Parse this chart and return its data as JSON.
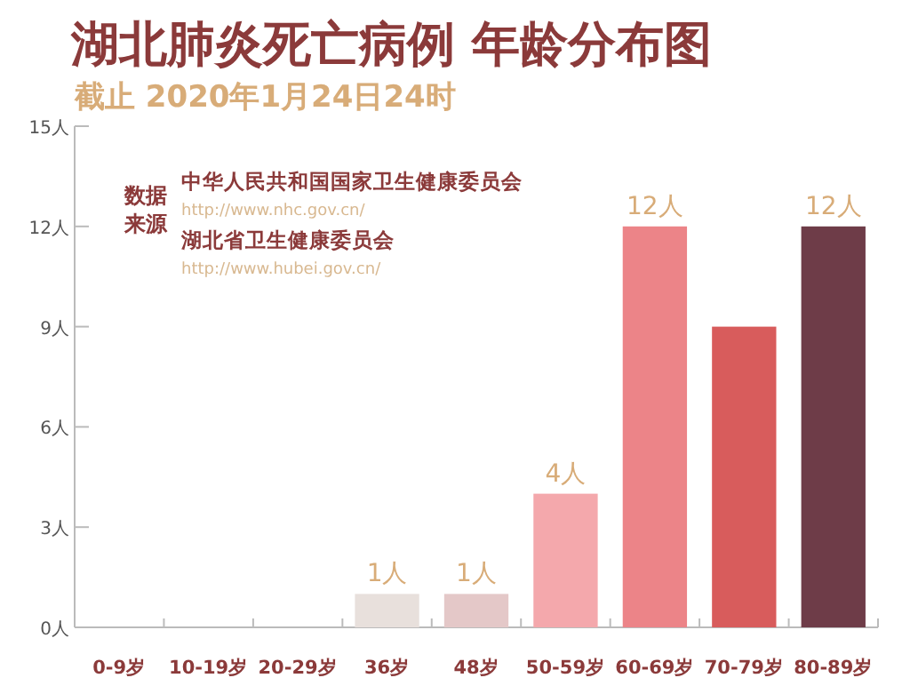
{
  "chart_data": {
    "type": "bar",
    "title": "湖北肺炎死亡病例 年龄分布图",
    "subtitle": "截止 2020年1月24日24时",
    "categories": [
      "0-9岁",
      "10-19岁",
      "20-29岁",
      "36岁",
      "48岁",
      "50-59岁",
      "60-69岁",
      "70-79岁",
      "80-89岁"
    ],
    "values": [
      0,
      0,
      0,
      1,
      1,
      4,
      12,
      9,
      12
    ],
    "colors": [
      "#e8e0dc",
      "#e8e0dc",
      "#e8e0dc",
      "#e8e0dc",
      "#e4c8c8",
      "#f4a8ac",
      "#ec8488",
      "#d85c5c",
      "#6e3c48"
    ],
    "value_labels": [
      null,
      null,
      null,
      "1人",
      "1人",
      "4人",
      "12人",
      null,
      "12人"
    ],
    "ylim": [
      0,
      15
    ],
    "yticks": [
      {
        "value": 0,
        "label": "0人"
      },
      {
        "value": 3,
        "label": "3人"
      },
      {
        "value": 6,
        "label": "6人"
      },
      {
        "value": 9,
        "label": "9人"
      },
      {
        "value": 12,
        "label": "12人"
      },
      {
        "value": 15,
        "label": "15人"
      }
    ],
    "annotations": [
      "数据来源",
      "中华人民共和国国家卫生健康委员会",
      "http://www.nhc.gov.cn/",
      "湖北省卫生健康委员会",
      "http://www.hubei.gov.cn/"
    ]
  }
}
